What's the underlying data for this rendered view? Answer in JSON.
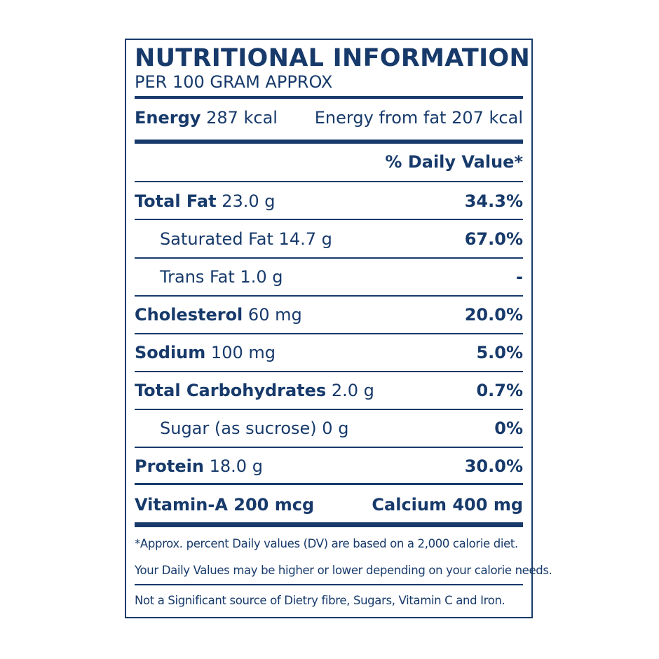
{
  "label": {
    "title": "NUTRITIONAL INFORMATION",
    "subtitle": "PER 100 GRAM APPROX",
    "energy": {
      "name": "Energy",
      "value": "287 kcal",
      "from_fat": "Energy from fat 207 kcal"
    },
    "daily_value_header": "% Daily Value*",
    "rows": [
      {
        "name": "Total Fat",
        "amount": "23.0 g",
        "percent": "34.3%"
      },
      {
        "name": "Saturated Fat",
        "amount": "14.7 g",
        "percent": "67.0%"
      },
      {
        "name": "Trans Fat",
        "amount": "1.0 g",
        "percent": "-"
      },
      {
        "name": "Cholesterol",
        "amount": "60 mg",
        "percent": "20.0%"
      },
      {
        "name": "Sodium",
        "amount": "100 mg",
        "percent": "5.0%"
      },
      {
        "name": "Total Carbohydrates",
        "amount": "2.0 g",
        "percent": "0.7%"
      },
      {
        "name": "Sugar (as sucrose)",
        "amount": "0 g",
        "percent": "0%"
      },
      {
        "name": "Protein",
        "amount": "18.0 g",
        "percent": "30.0%"
      }
    ],
    "vitamin_a": "Vitamin-A 200 mcg",
    "calcium": "Calcium 400 mg",
    "footnote_1": "*Approx. percent Daily values (DV) are based on a 2,000 calorie diet.",
    "footnote_2": "Your Daily Values may be higher or lower depending on your calorie needs.",
    "footnote_3": "Not a Significant source of Dietry fibre, Sugars, Vitamin C and Iron."
  },
  "colors": {
    "ink": "#173a6b",
    "background": "#ffffff"
  }
}
